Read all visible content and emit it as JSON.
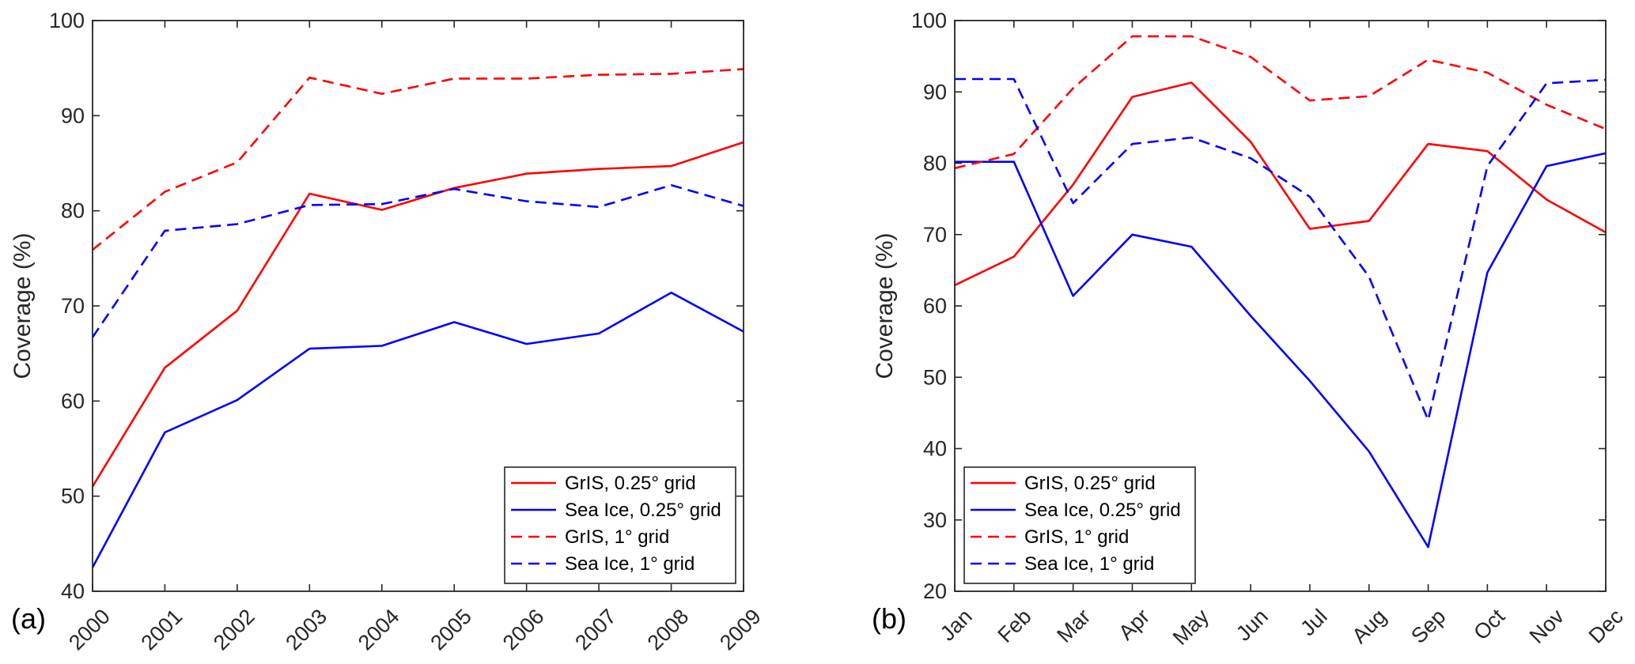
{
  "colors": {
    "red": "#ff0000",
    "blue": "#0000ff",
    "axis": "#262626"
  },
  "chart_data": [
    {
      "id": "a",
      "panel_label": "(a)",
      "type": "line",
      "categories": [
        "2000",
        "2001",
        "2002",
        "2003",
        "2004",
        "2005",
        "2006",
        "2007",
        "2008",
        "2009"
      ],
      "ylabel": "Coverage (%)",
      "xlabel": "",
      "ylim": [
        40,
        100
      ],
      "yticks": [
        40,
        50,
        60,
        70,
        80,
        90,
        100
      ],
      "legend_position": "bottom-right",
      "series": [
        {
          "name": "GrIS, 0.25° grid",
          "color": "#ff0000",
          "style": "solid",
          "values": [
            51,
            63.5,
            69.5,
            81.8,
            80.1,
            82.4,
            83.9,
            84.4,
            84.7,
            87.2
          ]
        },
        {
          "name": "Sea Ice, 0.25° grid",
          "color": "#0000ff",
          "style": "solid",
          "values": [
            42.5,
            56.7,
            60.1,
            65.5,
            65.8,
            68.3,
            66,
            67.1,
            71.4,
            67.3
          ]
        },
        {
          "name": "GrIS, 1° grid",
          "color": "#ff0000",
          "style": "dashed",
          "values": [
            75.9,
            82,
            85.1,
            94,
            92.3,
            93.9,
            93.9,
            94.3,
            94.4,
            94.9
          ]
        },
        {
          "name": "Sea Ice, 1° grid",
          "color": "#0000ff",
          "style": "dashed",
          "values": [
            66.7,
            77.9,
            78.6,
            80.6,
            80.7,
            82.3,
            81,
            80.4,
            82.7,
            80.5
          ]
        }
      ]
    },
    {
      "id": "b",
      "panel_label": "(b)",
      "type": "line",
      "categories": [
        "Jan",
        "Feb",
        "Mar",
        "Apr",
        "May",
        "Jun",
        "Jul",
        "Aug",
        "Sep",
        "Oct",
        "Nov",
        "Dec"
      ],
      "ylabel": "Coverage (%)",
      "xlabel": "",
      "ylim": [
        20,
        100
      ],
      "yticks": [
        20,
        30,
        40,
        50,
        60,
        70,
        80,
        90,
        100
      ],
      "legend_position": "bottom-left",
      "series": [
        {
          "name": "GrIS, 0.25° grid",
          "color": "#ff0000",
          "style": "solid",
          "values": [
            62.9,
            66.9,
            77,
            89.3,
            91.3,
            83,
            70.8,
            71.9,
            82.7,
            81.7,
            74.9,
            70.3
          ]
        },
        {
          "name": "Sea Ice, 0.25° grid",
          "color": "#0000ff",
          "style": "solid",
          "values": [
            80.2,
            80.2,
            61.4,
            70,
            68.3,
            58.6,
            49.5,
            39.6,
            26.2,
            64.7,
            79.6,
            81.4
          ]
        },
        {
          "name": "GrIS, 1° grid",
          "color": "#ff0000",
          "style": "dashed",
          "values": [
            79.3,
            81.3,
            90.5,
            97.8,
            97.8,
            94.9,
            88.8,
            89.4,
            94.5,
            92.7,
            88.2,
            84.8
          ]
        },
        {
          "name": "Sea Ice, 1° grid",
          "color": "#0000ff",
          "style": "dashed",
          "values": [
            91.8,
            91.8,
            74.4,
            82.7,
            83.6,
            80.7,
            75.3,
            64.1,
            44,
            79.6,
            91.2,
            91.7
          ]
        }
      ]
    }
  ]
}
